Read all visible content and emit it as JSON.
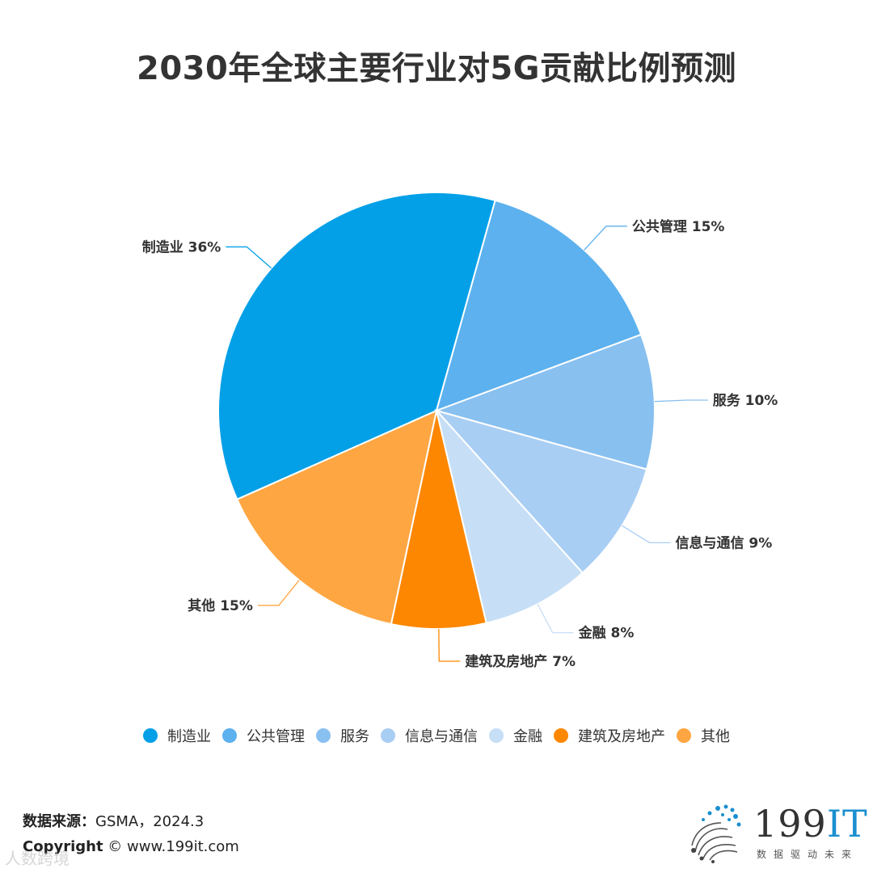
{
  "chart_data": {
    "type": "pie",
    "title": "2030年全球主要行业对5G贡献比例预测",
    "slices": [
      {
        "label": "制造业",
        "value": 36,
        "display": "制造业 36%",
        "color": "#03a0e8"
      },
      {
        "label": "公共管理",
        "value": 15,
        "display": "公共管理 15%",
        "color": "#5cb1ee"
      },
      {
        "label": "服务",
        "value": 10,
        "display": "服务 10%",
        "color": "#88c0f0"
      },
      {
        "label": "信息与通信",
        "value": 9,
        "display": "信息与通信 9%",
        "color": "#a9cef4"
      },
      {
        "label": "金融",
        "value": 8,
        "display": "金融 8%",
        "color": "#c6def6"
      },
      {
        "label": "建筑及房地产",
        "value": 7,
        "display": "建筑及房地产 7%",
        "color": "#fd8700"
      },
      {
        "label": "其他",
        "value": 15,
        "display": "其他 15%",
        "color": "#fea642"
      }
    ],
    "legend_position": "bottom"
  },
  "footer": {
    "source_label": "数据来源：",
    "source_value": "GSMA，2024.3",
    "copyright_label": "Copyright",
    "copyright_value": "© www.199it.com"
  },
  "logo": {
    "brand_num": "199",
    "brand_it": "IT",
    "tagline": "数据驱动未来"
  },
  "watermark": "人数跨境"
}
